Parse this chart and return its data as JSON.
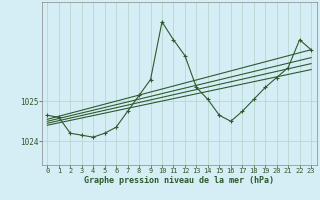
{
  "title": "Graphe pression niveau de la mer (hPa)",
  "bg_color": "#d5eef5",
  "grid_color": "#b8d8d0",
  "line_color": "#2d5a2d",
  "xlim": [
    -0.5,
    23.5
  ],
  "ylim": [
    1023.4,
    1027.5
  ],
  "yticks": [
    1024,
    1025
  ],
  "xticks": [
    0,
    1,
    2,
    3,
    4,
    5,
    6,
    7,
    8,
    9,
    10,
    11,
    12,
    13,
    14,
    15,
    16,
    17,
    18,
    19,
    20,
    21,
    22,
    23
  ],
  "main_curve": {
    "x": [
      0,
      1,
      2,
      3,
      4,
      5,
      6,
      7,
      8,
      9,
      10,
      11,
      12,
      13,
      14,
      15,
      16,
      17,
      18,
      19,
      20,
      21,
      22,
      23
    ],
    "y": [
      1024.65,
      1024.6,
      1024.2,
      1024.15,
      1024.1,
      1024.2,
      1024.35,
      1024.75,
      1025.15,
      1025.55,
      1027.0,
      1026.55,
      1026.15,
      1025.35,
      1025.05,
      1024.65,
      1024.5,
      1024.75,
      1025.05,
      1025.35,
      1025.6,
      1025.85,
      1026.55,
      1026.3
    ]
  },
  "straight_lines": [
    {
      "x": [
        0,
        23
      ],
      "y": [
        1024.55,
        1026.3
      ]
    },
    {
      "x": [
        0,
        23
      ],
      "y": [
        1024.5,
        1026.1
      ]
    },
    {
      "x": [
        0,
        23
      ],
      "y": [
        1024.45,
        1025.95
      ]
    },
    {
      "x": [
        0,
        23
      ],
      "y": [
        1024.4,
        1025.8
      ]
    }
  ]
}
